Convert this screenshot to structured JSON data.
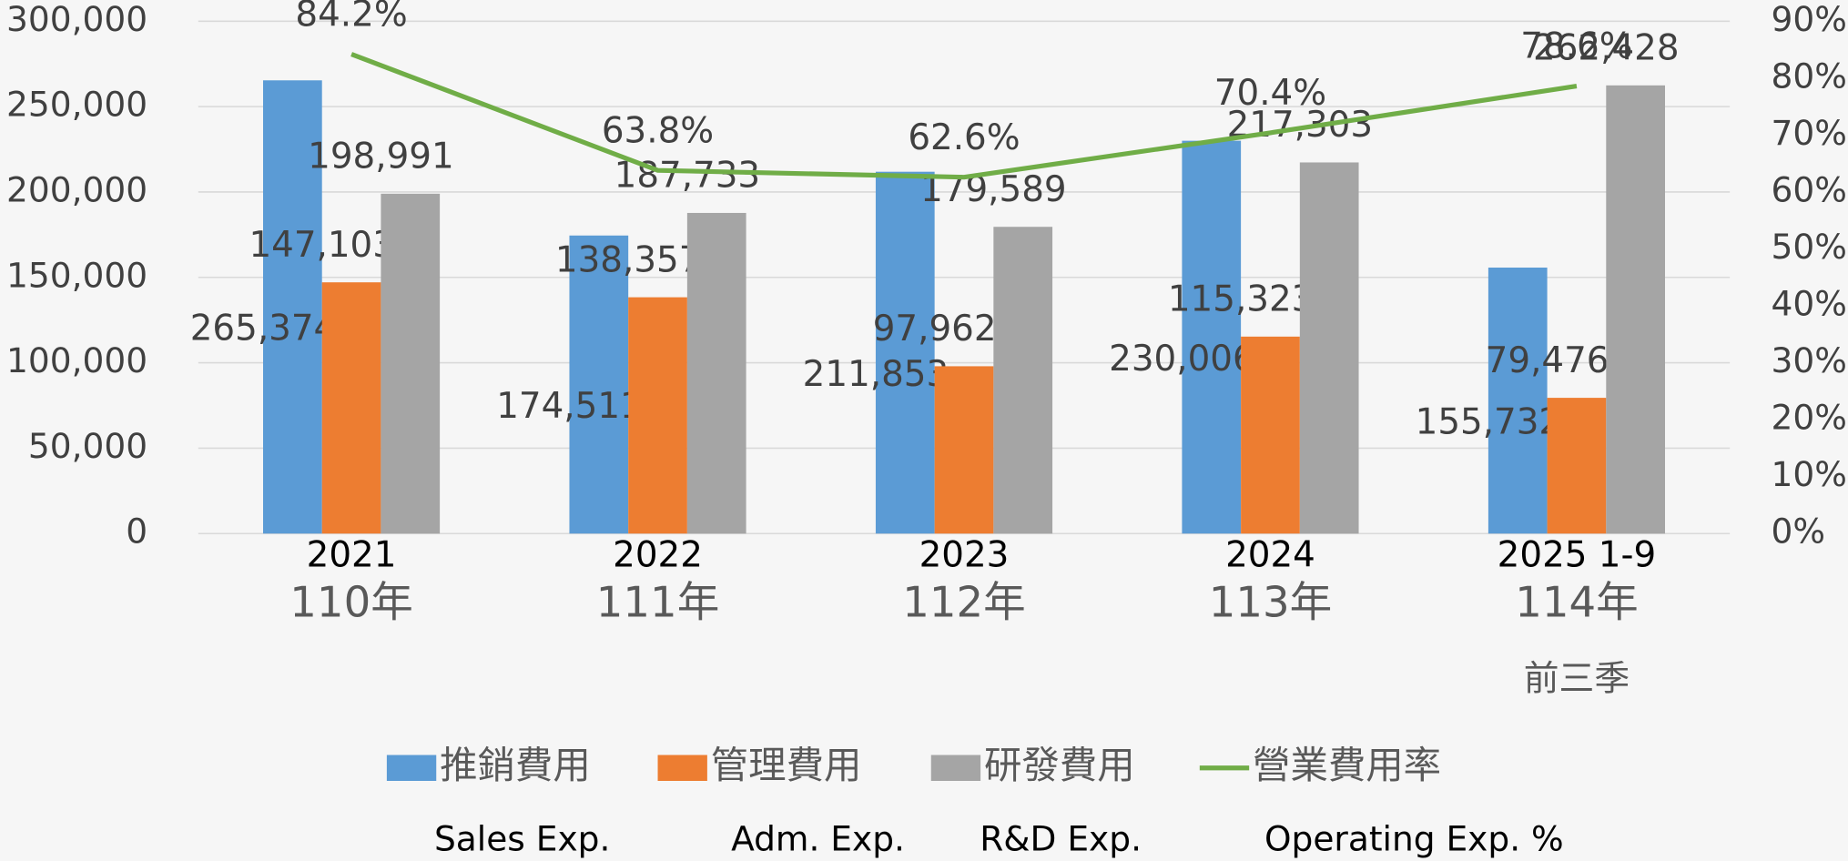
{
  "chart_data": {
    "type": "bar",
    "categories": [
      [
        "2021",
        "110年"
      ],
      [
        "2022",
        "111年"
      ],
      [
        "2023",
        "112年"
      ],
      [
        "2024",
        "113年"
      ],
      [
        "2025 1-9",
        "114年",
        "前三季"
      ]
    ],
    "series": [
      {
        "name": "推銷費用",
        "name_en": "Sales Exp.",
        "color": "#5b9bd5",
        "type": "bar",
        "values": [
          265374,
          174511,
          211853,
          230006,
          155732
        ],
        "value_labels": [
          "265,374",
          "174,511",
          "211,853",
          "230,006",
          "155,732"
        ]
      },
      {
        "name": "管理費用",
        "name_en": "Adm. Exp.",
        "color": "#ed7d31",
        "type": "bar",
        "values": [
          147103,
          138357,
          97962,
          115323,
          79476
        ],
        "value_labels": [
          "147,103",
          "138,357",
          "97,962",
          "115,323",
          "79,476"
        ]
      },
      {
        "name": "研發費用",
        "name_en": "R&D Exp.",
        "color": "#a5a5a5",
        "type": "bar",
        "values": [
          198991,
          187733,
          179589,
          217303,
          262428
        ],
        "value_labels": [
          "198,991",
          "187,733",
          "179,589",
          "217,303",
          "262,428"
        ]
      },
      {
        "name": "營業費用率",
        "name_en": "Operating Exp. %",
        "color": "#70ad47",
        "type": "line",
        "axis": "y2",
        "values": [
          84.2,
          63.8,
          62.6,
          70.4,
          78.6
        ],
        "value_labels": [
          "84.2%",
          "63.8%",
          "62.6%",
          "70.4%",
          "78.6%"
        ]
      }
    ],
    "ylim": [
      0,
      300000
    ],
    "yticks": [
      0,
      {
        "value": 50000,
        "label": "50,000"
      },
      {
        "value": 100000,
        "label": "100,000"
      },
      {
        "value": 150000,
        "label": "150,000"
      },
      {
        "value": 200000,
        "label": "200,000"
      },
      {
        "value": 250000,
        "label": "250,000"
      },
      {
        "value": 300000,
        "label": "300,000"
      }
    ],
    "y2lim": [
      0,
      90
    ],
    "y2ticks": [
      {
        "value": 0,
        "label": "0%"
      },
      {
        "value": 10,
        "label": "10%"
      },
      {
        "value": 20,
        "label": "20%"
      },
      {
        "value": 30,
        "label": "30%"
      },
      {
        "value": 40,
        "label": "40%"
      },
      {
        "value": 50,
        "label": "50%"
      },
      {
        "value": 60,
        "label": "60%"
      },
      {
        "value": 70,
        "label": "70%"
      },
      {
        "value": 80,
        "label": "80%"
      },
      {
        "value": 90,
        "label": "90%"
      }
    ],
    "grid": true,
    "legend": "bottom"
  }
}
